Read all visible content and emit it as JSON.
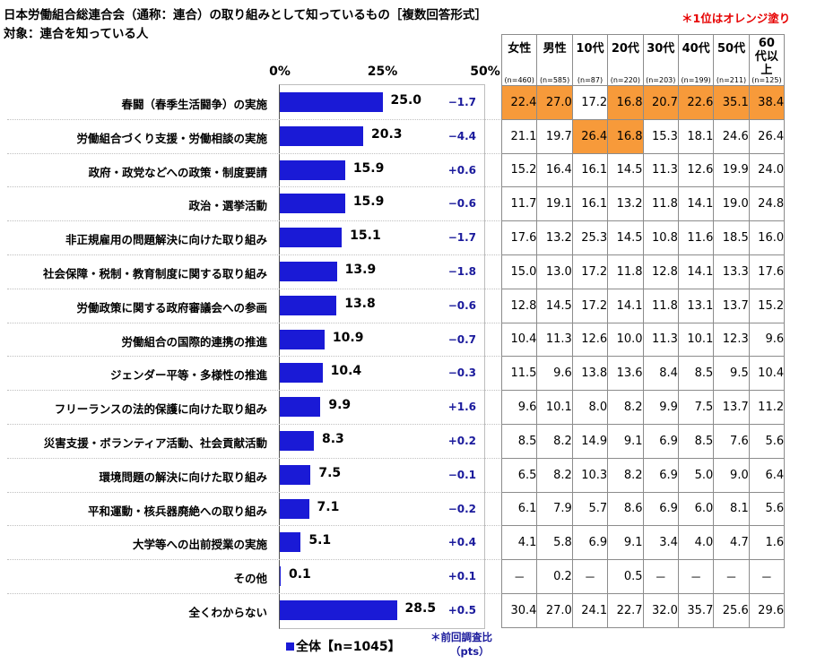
{
  "title": "日本労働組合総連合会（通称：連合）の取り組みとして知っているもの［複数回答形式］",
  "subtitle": "対象：連合を知っている人",
  "note": "＊1位はオレンジ塗り",
  "legend": "全体【n=1045】",
  "footnote_line1": "＊前回調査比",
  "footnote_line2": "（pts）",
  "highlight_color": "#f79a3a",
  "bar_color": "#1a1ad6",
  "chart_data": {
    "type": "bar",
    "orientation": "horizontal",
    "xlim": [
      0,
      50
    ],
    "tick_labels": [
      "0%",
      "25%",
      "50%"
    ],
    "tick_values": [
      0,
      25,
      50
    ],
    "categories": [
      "春闘（春季生活闘争）の実施",
      "労働組合づくり支援・労働相談の実施",
      "政府・政党などへの政策・制度要請",
      "政治・選挙活動",
      "非正規雇用の問題解決に向けた取り組み",
      "社会保障・税制・教育制度に関する取り組み",
      "労働政策に関する政府審議会への参画",
      "労働組合の国際的連携の推進",
      "ジェンダー平等・多様性の推進",
      "フリーランスの法的保護に向けた取り組み",
      "災害支援・ボランティア活動、社会貢献活動",
      "環境問題の解決に向けた取り組み",
      "平和運動・核兵器廃絶への取り組み",
      "大学等への出前授業の実施",
      "その他",
      "全くわからない"
    ],
    "series": [
      {
        "name": "全体【n=1045】",
        "values": [
          25.0,
          20.3,
          15.9,
          15.9,
          15.1,
          13.9,
          13.8,
          10.9,
          10.4,
          9.9,
          8.3,
          7.5,
          7.1,
          5.1,
          0.1,
          28.5
        ]
      }
    ],
    "value_labels": [
      "25.0",
      "20.3",
      "15.9",
      "15.9",
      "15.1",
      "13.9",
      "13.8",
      "10.9",
      "10.4",
      "9.9",
      "8.3",
      "7.5",
      "7.1",
      "5.1",
      "0.1",
      "28.5"
    ],
    "diff_labels": [
      "−1.7",
      "−4.4",
      "+0.6",
      "−0.6",
      "−1.7",
      "−1.8",
      "−0.6",
      "−0.7",
      "−0.3",
      "+1.6",
      "+0.2",
      "−0.1",
      "−0.2",
      "+0.4",
      "+0.1",
      "+0.5"
    ],
    "table": {
      "columns": [
        {
          "label": "女性",
          "n": "(n=460)"
        },
        {
          "label": "男性",
          "n": "(n=585)"
        },
        {
          "label": "10代",
          "n": "(n=87)"
        },
        {
          "label": "20代",
          "n": "(n=220)"
        },
        {
          "label": "30代",
          "n": "(n=203)"
        },
        {
          "label": "40代",
          "n": "(n=199)"
        },
        {
          "label": "50代",
          "n": "(n=211)"
        },
        {
          "label": "60代以上",
          "n": "(n=125)"
        }
      ],
      "rows": [
        [
          "22.4",
          "27.0",
          "17.2",
          "16.8",
          "20.7",
          "22.6",
          "35.1",
          "38.4"
        ],
        [
          "21.1",
          "19.7",
          "26.4",
          "16.8",
          "15.3",
          "18.1",
          "24.6",
          "26.4"
        ],
        [
          "15.2",
          "16.4",
          "16.1",
          "14.5",
          "11.3",
          "12.6",
          "19.9",
          "24.0"
        ],
        [
          "11.7",
          "19.1",
          "16.1",
          "13.2",
          "11.8",
          "14.1",
          "19.0",
          "24.8"
        ],
        [
          "17.6",
          "13.2",
          "25.3",
          "14.5",
          "10.8",
          "11.6",
          "18.5",
          "16.0"
        ],
        [
          "15.0",
          "13.0",
          "17.2",
          "11.8",
          "12.8",
          "14.1",
          "13.3",
          "17.6"
        ],
        [
          "12.8",
          "14.5",
          "17.2",
          "14.1",
          "11.8",
          "13.1",
          "13.7",
          "15.2"
        ],
        [
          "10.4",
          "11.3",
          "12.6",
          "10.0",
          "11.3",
          "10.1",
          "12.3",
          "9.6"
        ],
        [
          "11.5",
          "9.6",
          "13.8",
          "13.6",
          "8.4",
          "8.5",
          "9.5",
          "10.4"
        ],
        [
          "9.6",
          "10.1",
          "8.0",
          "8.2",
          "9.9",
          "7.5",
          "13.7",
          "11.2"
        ],
        [
          "8.5",
          "8.2",
          "14.9",
          "9.1",
          "6.9",
          "8.5",
          "7.6",
          "5.6"
        ],
        [
          "6.5",
          "8.2",
          "10.3",
          "8.2",
          "6.9",
          "5.0",
          "9.0",
          "6.4"
        ],
        [
          "6.1",
          "7.9",
          "5.7",
          "8.6",
          "6.9",
          "6.0",
          "8.1",
          "5.6"
        ],
        [
          "4.1",
          "5.8",
          "6.9",
          "9.1",
          "3.4",
          "4.0",
          "4.7",
          "1.6"
        ],
        [
          "－",
          "0.2",
          "－",
          "0.5",
          "－",
          "－",
          "－",
          "－"
        ],
        [
          "30.4",
          "27.0",
          "24.1",
          "22.7",
          "32.0",
          "35.7",
          "25.6",
          "29.6"
        ]
      ],
      "highlighted": [
        [
          0,
          0
        ],
        [
          0,
          1
        ],
        [
          0,
          3
        ],
        [
          0,
          4
        ],
        [
          0,
          5
        ],
        [
          0,
          6
        ],
        [
          0,
          7
        ],
        [
          1,
          2
        ],
        [
          1,
          3
        ]
      ]
    }
  }
}
